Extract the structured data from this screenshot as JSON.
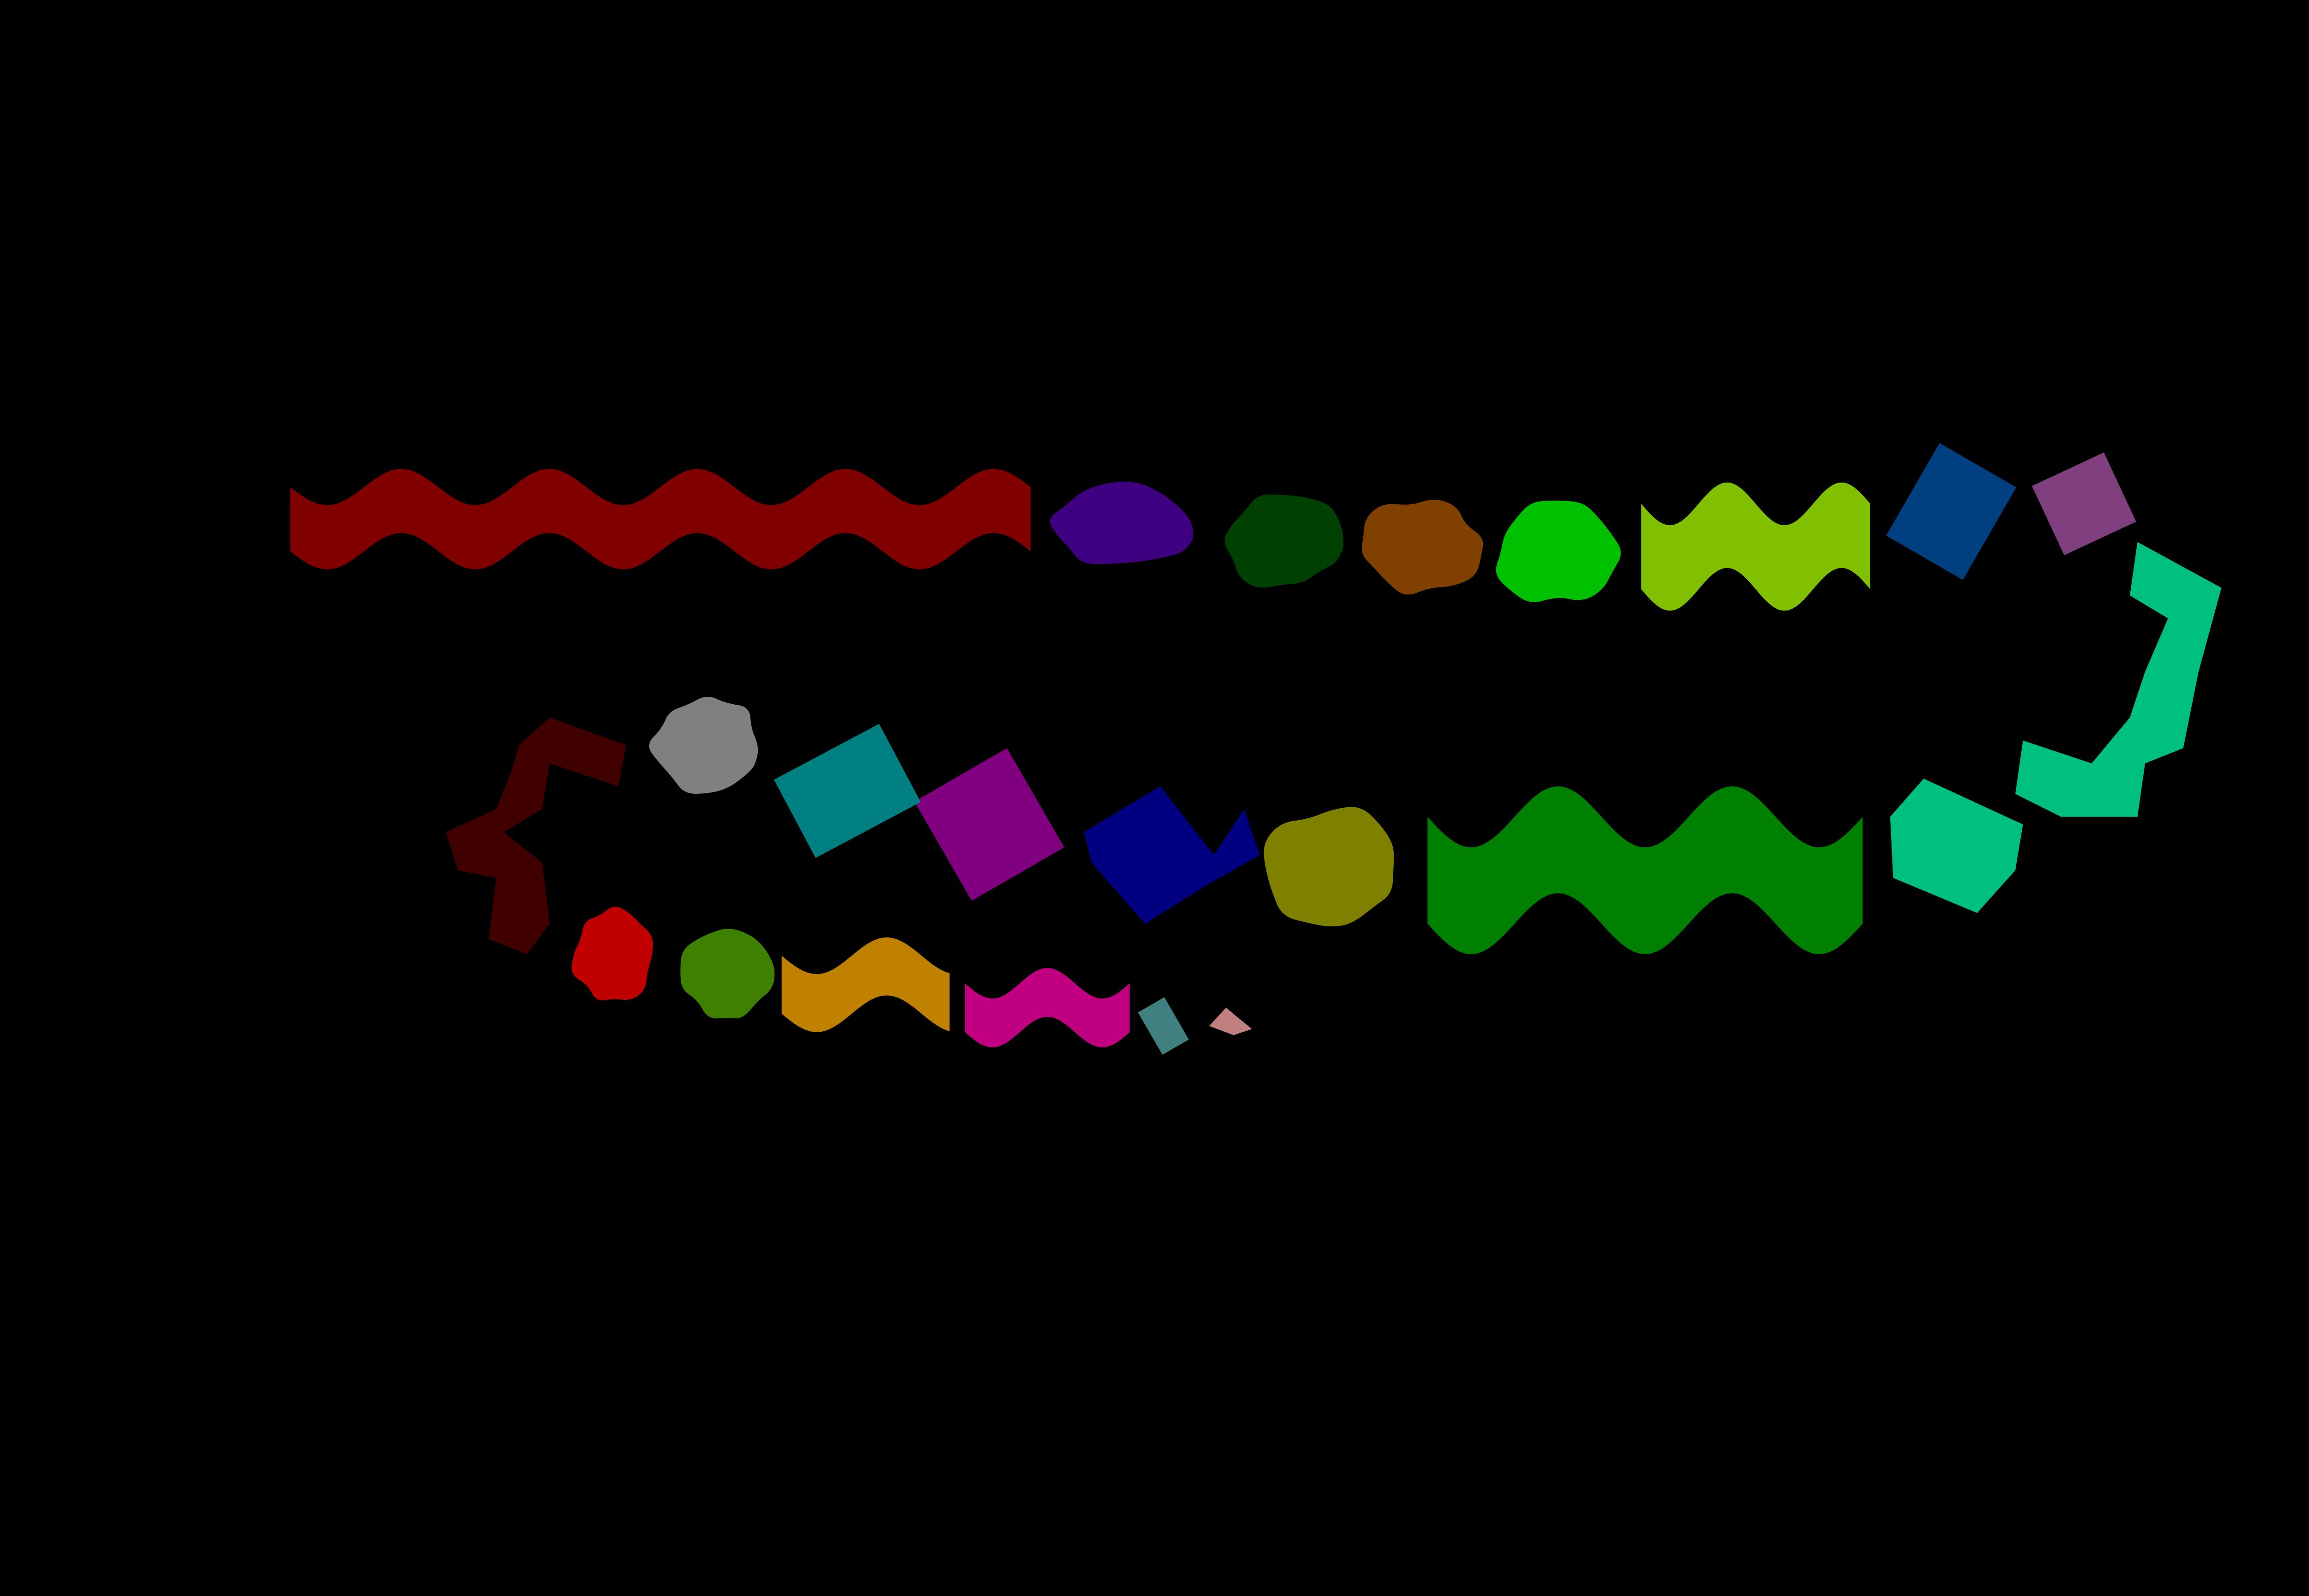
{
  "background_color": "#000000",
  "segments": [
    {
      "id": "segment-01",
      "shape": "wiggle",
      "color": "#800000"
    },
    {
      "id": "segment-02",
      "shape": "blob",
      "color": "#3e0080"
    },
    {
      "id": "segment-03",
      "shape": "blob",
      "color": "#004000"
    },
    {
      "id": "segment-04",
      "shape": "blob",
      "color": "#804000"
    },
    {
      "id": "segment-05",
      "shape": "blob",
      "color": "#00c000"
    },
    {
      "id": "segment-06",
      "shape": "wiggle",
      "color": "#80c000"
    },
    {
      "id": "segment-07",
      "shape": "diamond",
      "color": "#004080"
    },
    {
      "id": "segment-08",
      "shape": "diamond",
      "color": "#804080"
    },
    {
      "id": "segment-09",
      "shape": "curve",
      "color": "#00c080"
    },
    {
      "id": "segment-10",
      "shape": "blob",
      "color": "#00c080"
    },
    {
      "id": "segment-11",
      "shape": "wiggle",
      "color": "#008000"
    },
    {
      "id": "segment-12",
      "shape": "blob",
      "color": "#808000"
    },
    {
      "id": "segment-13",
      "shape": "diamond",
      "color": "#000080"
    },
    {
      "id": "segment-14",
      "shape": "diamond",
      "color": "#800080"
    },
    {
      "id": "segment-15",
      "shape": "diamond",
      "color": "#008080"
    },
    {
      "id": "segment-16",
      "shape": "blob",
      "color": "#808080"
    },
    {
      "id": "segment-17",
      "shape": "curve",
      "color": "#400000"
    },
    {
      "id": "segment-18",
      "shape": "blob",
      "color": "#c00000"
    },
    {
      "id": "segment-19",
      "shape": "blob",
      "color": "#408000"
    },
    {
      "id": "segment-20",
      "shape": "wiggle",
      "color": "#c08000"
    },
    {
      "id": "segment-21",
      "shape": "wiggle",
      "color": "#c00080"
    },
    {
      "id": "segment-22",
      "shape": "blob",
      "color": "#408080"
    },
    {
      "id": "segment-23",
      "shape": "triangle",
      "color": "#c08080"
    }
  ]
}
